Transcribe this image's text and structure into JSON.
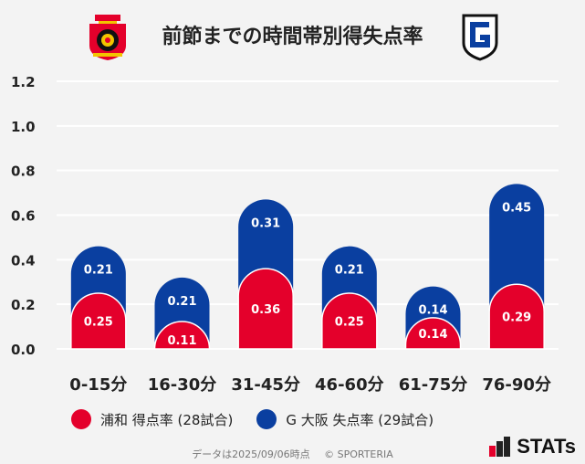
{
  "title": "前節までの時間帯別得失点率",
  "chart_data": {
    "type": "bar",
    "stacked": true,
    "categories": [
      "0-15分",
      "16-30分",
      "31-45分",
      "46-60分",
      "61-75分",
      "76-90分"
    ],
    "series": [
      {
        "name": "浦和 得点率 (28試合)",
        "color": "#e4002b",
        "values": [
          0.25,
          0.11,
          0.36,
          0.25,
          0.14,
          0.29
        ]
      },
      {
        "name": "G大阪 失点率 (29試合)",
        "color": "#0a3fa0",
        "values": [
          0.21,
          0.21,
          0.31,
          0.21,
          0.14,
          0.45
        ]
      }
    ],
    "value_labels": [
      [
        "0.25",
        "0.11",
        "0.36",
        "0.25",
        "0.14",
        "0.29"
      ],
      [
        "0.21",
        "0.21",
        "0.31",
        "0.21",
        "0.14",
        "0.45"
      ]
    ],
    "ylim": [
      0,
      1.2
    ],
    "yticks": [
      "0.0",
      "0.2",
      "0.4",
      "0.6",
      "0.8",
      "1.0",
      "1.2"
    ],
    "grid": true
  },
  "legend": {
    "home": {
      "label": "浦和 得点率 (28試合)",
      "color": "#e4002b"
    },
    "away": {
      "label": "G 大阪 失点率 (29試合)",
      "color": "#0a3fa0"
    }
  },
  "footer": {
    "date_text": "データは2025/09/06時点",
    "copyright": "© SPORTERIA"
  },
  "brand": "STATs",
  "crests": {
    "home": {
      "icon": "urawa-crest-icon"
    },
    "away": {
      "icon": "gamba-crest-icon"
    }
  }
}
